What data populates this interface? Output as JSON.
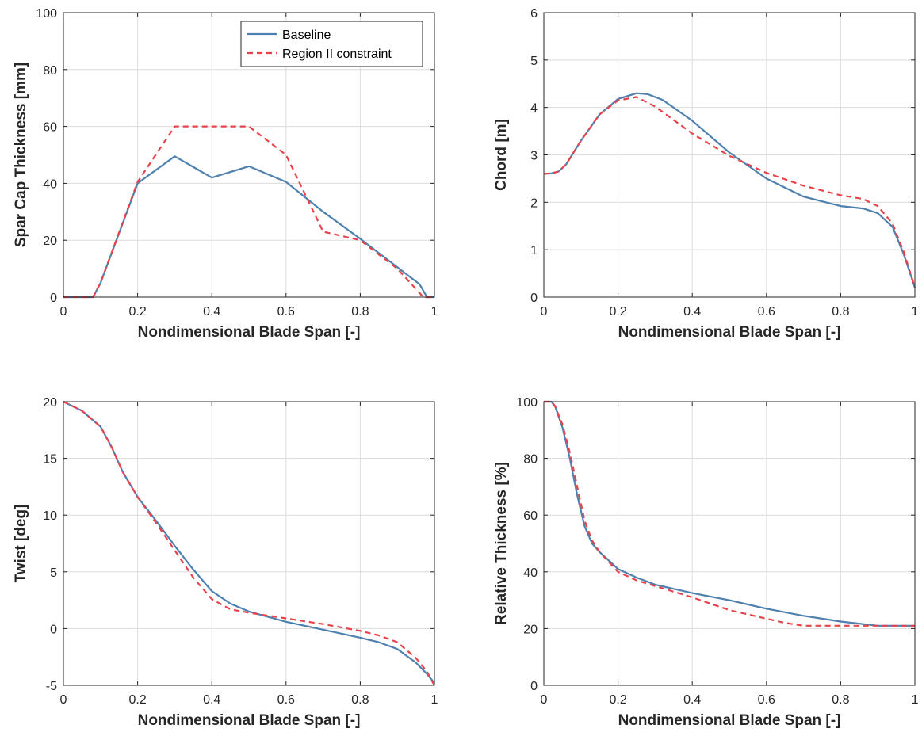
{
  "colors": {
    "baseline": "#4f81af",
    "region2": "#e8434b",
    "grid": "#dcdcdc",
    "axis": "#262626"
  },
  "chart_data": [
    {
      "type": "line",
      "xlabel": "Nondimensional Blade Span [-]",
      "ylabel": "Spar Cap Thickness [mm]",
      "xlim": [
        0,
        1
      ],
      "ylim": [
        0,
        100
      ],
      "xticks": [
        0,
        0.2,
        0.4,
        0.6,
        0.8,
        1
      ],
      "yticks": [
        0,
        20,
        40,
        60,
        80,
        100
      ],
      "xtick_labels": [
        "0",
        "0.2",
        "0.4",
        "0.6",
        "0.8",
        "1"
      ],
      "ytick_labels": [
        "0",
        "20",
        "40",
        "60",
        "80",
        "100"
      ],
      "grid": true,
      "legend": {
        "placement": "top-right",
        "entries": [
          "Baseline",
          "Region II constraint"
        ]
      },
      "series": [
        {
          "name": "Baseline",
          "style": "solid",
          "x": [
            0,
            0.08,
            0.1,
            0.2,
            0.3,
            0.4,
            0.5,
            0.6,
            0.7,
            0.8,
            0.9,
            0.96,
            0.98,
            1
          ],
          "y": [
            0,
            0,
            5,
            40,
            49.5,
            42,
            46,
            40.5,
            30,
            20.5,
            10.5,
            4.5,
            0,
            0
          ]
        },
        {
          "name": "Region II constraint",
          "style": "dashed",
          "x": [
            0,
            0.08,
            0.1,
            0.2,
            0.3,
            0.4,
            0.5,
            0.6,
            0.7,
            0.8,
            0.9,
            0.97,
            1
          ],
          "y": [
            0,
            0,
            5,
            40.5,
            60,
            60,
            60,
            50,
            23,
            20,
            10,
            0,
            0
          ]
        }
      ]
    },
    {
      "type": "line",
      "xlabel": "Nondimensional Blade Span [-]",
      "ylabel": "Chord [m]",
      "xlim": [
        0,
        1
      ],
      "ylim": [
        0,
        6
      ],
      "xticks": [
        0,
        0.2,
        0.4,
        0.6,
        0.8,
        1
      ],
      "yticks": [
        0,
        1,
        2,
        3,
        4,
        5,
        6
      ],
      "xtick_labels": [
        "0",
        "0.2",
        "0.4",
        "0.6",
        "0.8",
        "1"
      ],
      "ytick_labels": [
        "0",
        "1",
        "2",
        "3",
        "4",
        "5",
        "6"
      ],
      "grid": true,
      "series": [
        {
          "name": "Baseline",
          "style": "solid",
          "x": [
            0,
            0.02,
            0.04,
            0.06,
            0.1,
            0.15,
            0.2,
            0.25,
            0.28,
            0.32,
            0.4,
            0.5,
            0.6,
            0.7,
            0.8,
            0.86,
            0.9,
            0.94,
            0.97,
            1
          ],
          "y": [
            2.6,
            2.61,
            2.65,
            2.8,
            3.3,
            3.85,
            4.18,
            4.3,
            4.28,
            4.16,
            3.72,
            3.05,
            2.5,
            2.12,
            1.92,
            1.87,
            1.77,
            1.48,
            0.9,
            0.2
          ]
        },
        {
          "name": "Region II constraint",
          "style": "dashed",
          "x": [
            0,
            0.02,
            0.04,
            0.06,
            0.1,
            0.15,
            0.2,
            0.25,
            0.3,
            0.4,
            0.5,
            0.6,
            0.7,
            0.8,
            0.86,
            0.9,
            0.94,
            0.97,
            1
          ],
          "y": [
            2.6,
            2.61,
            2.65,
            2.8,
            3.3,
            3.85,
            4.15,
            4.22,
            4.02,
            3.45,
            2.98,
            2.62,
            2.35,
            2.15,
            2.07,
            1.92,
            1.55,
            0.95,
            0.2
          ]
        }
      ]
    },
    {
      "type": "line",
      "xlabel": "Nondimensional Blade Span [-]",
      "ylabel": "Twist [deg]",
      "xlim": [
        0,
        1
      ],
      "ylim": [
        -5,
        20
      ],
      "xticks": [
        0,
        0.2,
        0.4,
        0.6,
        0.8,
        1
      ],
      "yticks": [
        -5,
        0,
        5,
        10,
        15,
        20
      ],
      "xtick_labels": [
        "0",
        "0.2",
        "0.4",
        "0.6",
        "0.8",
        "1"
      ],
      "ytick_labels": [
        "-5",
        "0",
        "5",
        "10",
        "15",
        "20"
      ],
      "grid": true,
      "series": [
        {
          "name": "Baseline",
          "style": "solid",
          "x": [
            0,
            0.05,
            0.1,
            0.13,
            0.16,
            0.2,
            0.25,
            0.3,
            0.35,
            0.4,
            0.45,
            0.5,
            0.6,
            0.7,
            0.8,
            0.85,
            0.9,
            0.95,
            0.98,
            1
          ],
          "y": [
            20,
            19.2,
            17.8,
            16.0,
            13.8,
            11.6,
            9.5,
            7.3,
            5.2,
            3.3,
            2.2,
            1.5,
            0.6,
            -0.1,
            -0.8,
            -1.2,
            -1.8,
            -3.0,
            -4.0,
            -4.8
          ]
        },
        {
          "name": "Region II constraint",
          "style": "dashed",
          "x": [
            0,
            0.05,
            0.1,
            0.13,
            0.16,
            0.2,
            0.25,
            0.3,
            0.35,
            0.4,
            0.45,
            0.5,
            0.6,
            0.7,
            0.8,
            0.85,
            0.9,
            0.95,
            0.98,
            1
          ],
          "y": [
            20,
            19.2,
            17.8,
            16.0,
            13.8,
            11.6,
            9.3,
            6.9,
            4.5,
            2.6,
            1.7,
            1.4,
            0.9,
            0.4,
            -0.2,
            -0.6,
            -1.2,
            -2.6,
            -3.8,
            -5.0
          ]
        }
      ]
    },
    {
      "type": "line",
      "xlabel": "Nondimensional Blade Span [-]",
      "ylabel": "Relative Thickness [%]",
      "xlim": [
        0,
        1
      ],
      "ylim": [
        0,
        100
      ],
      "xticks": [
        0,
        0.2,
        0.4,
        0.6,
        0.8,
        1
      ],
      "yticks": [
        0,
        20,
        40,
        60,
        80,
        100
      ],
      "xtick_labels": [
        "0",
        "0.2",
        "0.4",
        "0.6",
        "0.8",
        "1"
      ],
      "ytick_labels": [
        "0",
        "20",
        "40",
        "60",
        "80",
        "100"
      ],
      "grid": true,
      "series": [
        {
          "name": "Baseline",
          "style": "solid",
          "x": [
            0,
            0.02,
            0.03,
            0.05,
            0.07,
            0.09,
            0.11,
            0.13,
            0.15,
            0.2,
            0.25,
            0.3,
            0.4,
            0.5,
            0.55,
            0.6,
            0.7,
            0.8,
            0.9,
            1
          ],
          "y": [
            100,
            100,
            98.5,
            91,
            80,
            67,
            56,
            50,
            47,
            41,
            38,
            35.5,
            32.5,
            30,
            28.5,
            27,
            24.5,
            22.5,
            21,
            21
          ]
        },
        {
          "name": "Region II constraint",
          "style": "dashed",
          "x": [
            0,
            0.02,
            0.03,
            0.05,
            0.07,
            0.09,
            0.11,
            0.13,
            0.15,
            0.2,
            0.25,
            0.3,
            0.4,
            0.5,
            0.6,
            0.65,
            0.7,
            0.8,
            0.9,
            1
          ],
          "y": [
            100,
            100,
            98.5,
            92,
            82,
            70,
            58,
            51,
            47,
            40,
            37,
            35,
            31,
            26.5,
            23.5,
            22,
            21,
            21,
            21,
            21
          ]
        }
      ]
    }
  ]
}
